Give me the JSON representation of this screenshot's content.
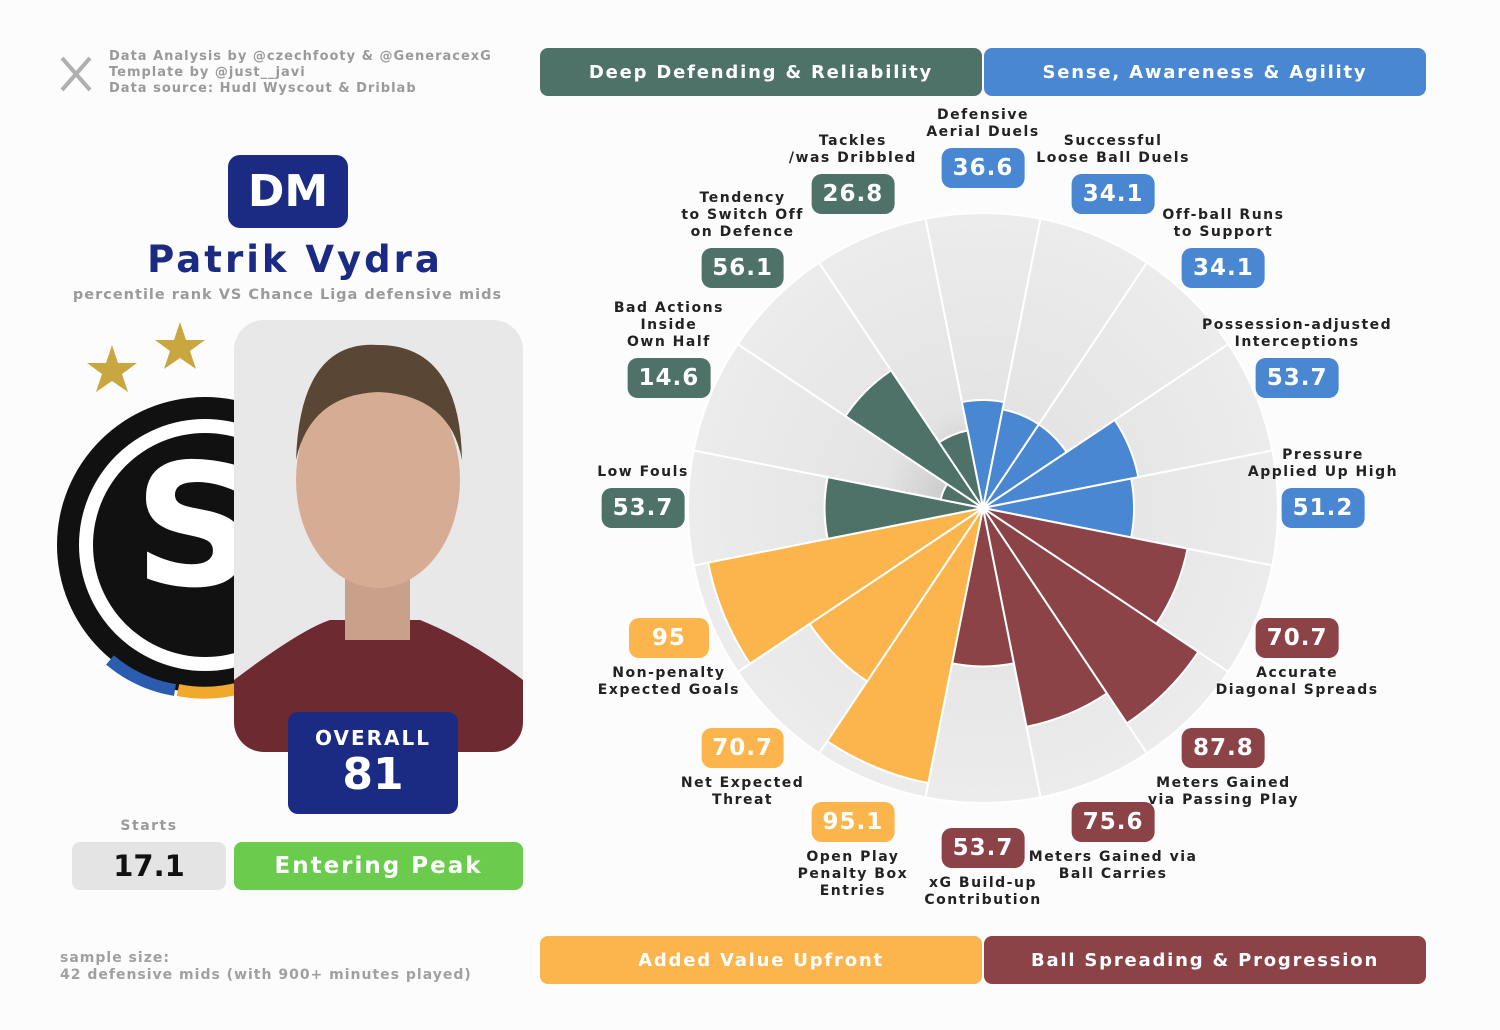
{
  "header": {
    "credits": [
      "Data Analysis by @czechfooty & @GeneracexG",
      "Template by @just__javi",
      "Data source: Hudl Wyscout & Driblab"
    ],
    "position": "DM",
    "name": "Patrik Vydra",
    "subtitle": "percentile rank VS Chance Liga defensive mids"
  },
  "summary": {
    "overall_label": "OVERALL",
    "overall": 81,
    "starts_label": "Starts",
    "starts": 17.1,
    "stage": "Entering Peak"
  },
  "footer": [
    "sample size:",
    "42 defensive mids (with 900+ minutes played)"
  ],
  "chart_data": {
    "type": "pizza",
    "rlim": [
      0,
      100
    ],
    "series": [
      {
        "name": "Sense, Awareness & Agility",
        "color": "#4a87d3",
        "categories": [
          "Defensive\nAerial Duels",
          "Successful\nLoose Ball Duels",
          "Off-ball Runs\nto Support",
          "Possession-adjusted\nInterceptions",
          "Pressure\nApplied Up High"
        ],
        "values": [
          36.6,
          34.1,
          34.1,
          53.7,
          51.2
        ]
      },
      {
        "name": "Ball Spreading & Progression",
        "color": "#8c4347",
        "categories": [
          "Accurate\nDiagonal Spreads",
          "Meters Gained\nvia Passing Play",
          "Meters Gained via\nBall Carries",
          "xG Build-up\nContribution"
        ],
        "values": [
          70.7,
          87.8,
          75.6,
          53.7
        ]
      },
      {
        "name": "Added Value Upfront",
        "color": "#fbb54c",
        "categories": [
          "Open Play\nPenalty Box\nEntries",
          "Net Expected\nThreat",
          "Non-penalty\nExpected Goals"
        ],
        "values": [
          95.1,
          70.7,
          95
        ]
      },
      {
        "name": "Deep Defending & Reliability",
        "color": "#4e7168",
        "categories": [
          "Low Fouls",
          "Bad Actions\nInside\nOwn Half",
          "Tendency\nto Switch Off\non Defence",
          "Tackles\n/was Dribbled"
        ],
        "values": [
          53.7,
          14.6,
          56.1,
          26.8
        ]
      }
    ]
  }
}
